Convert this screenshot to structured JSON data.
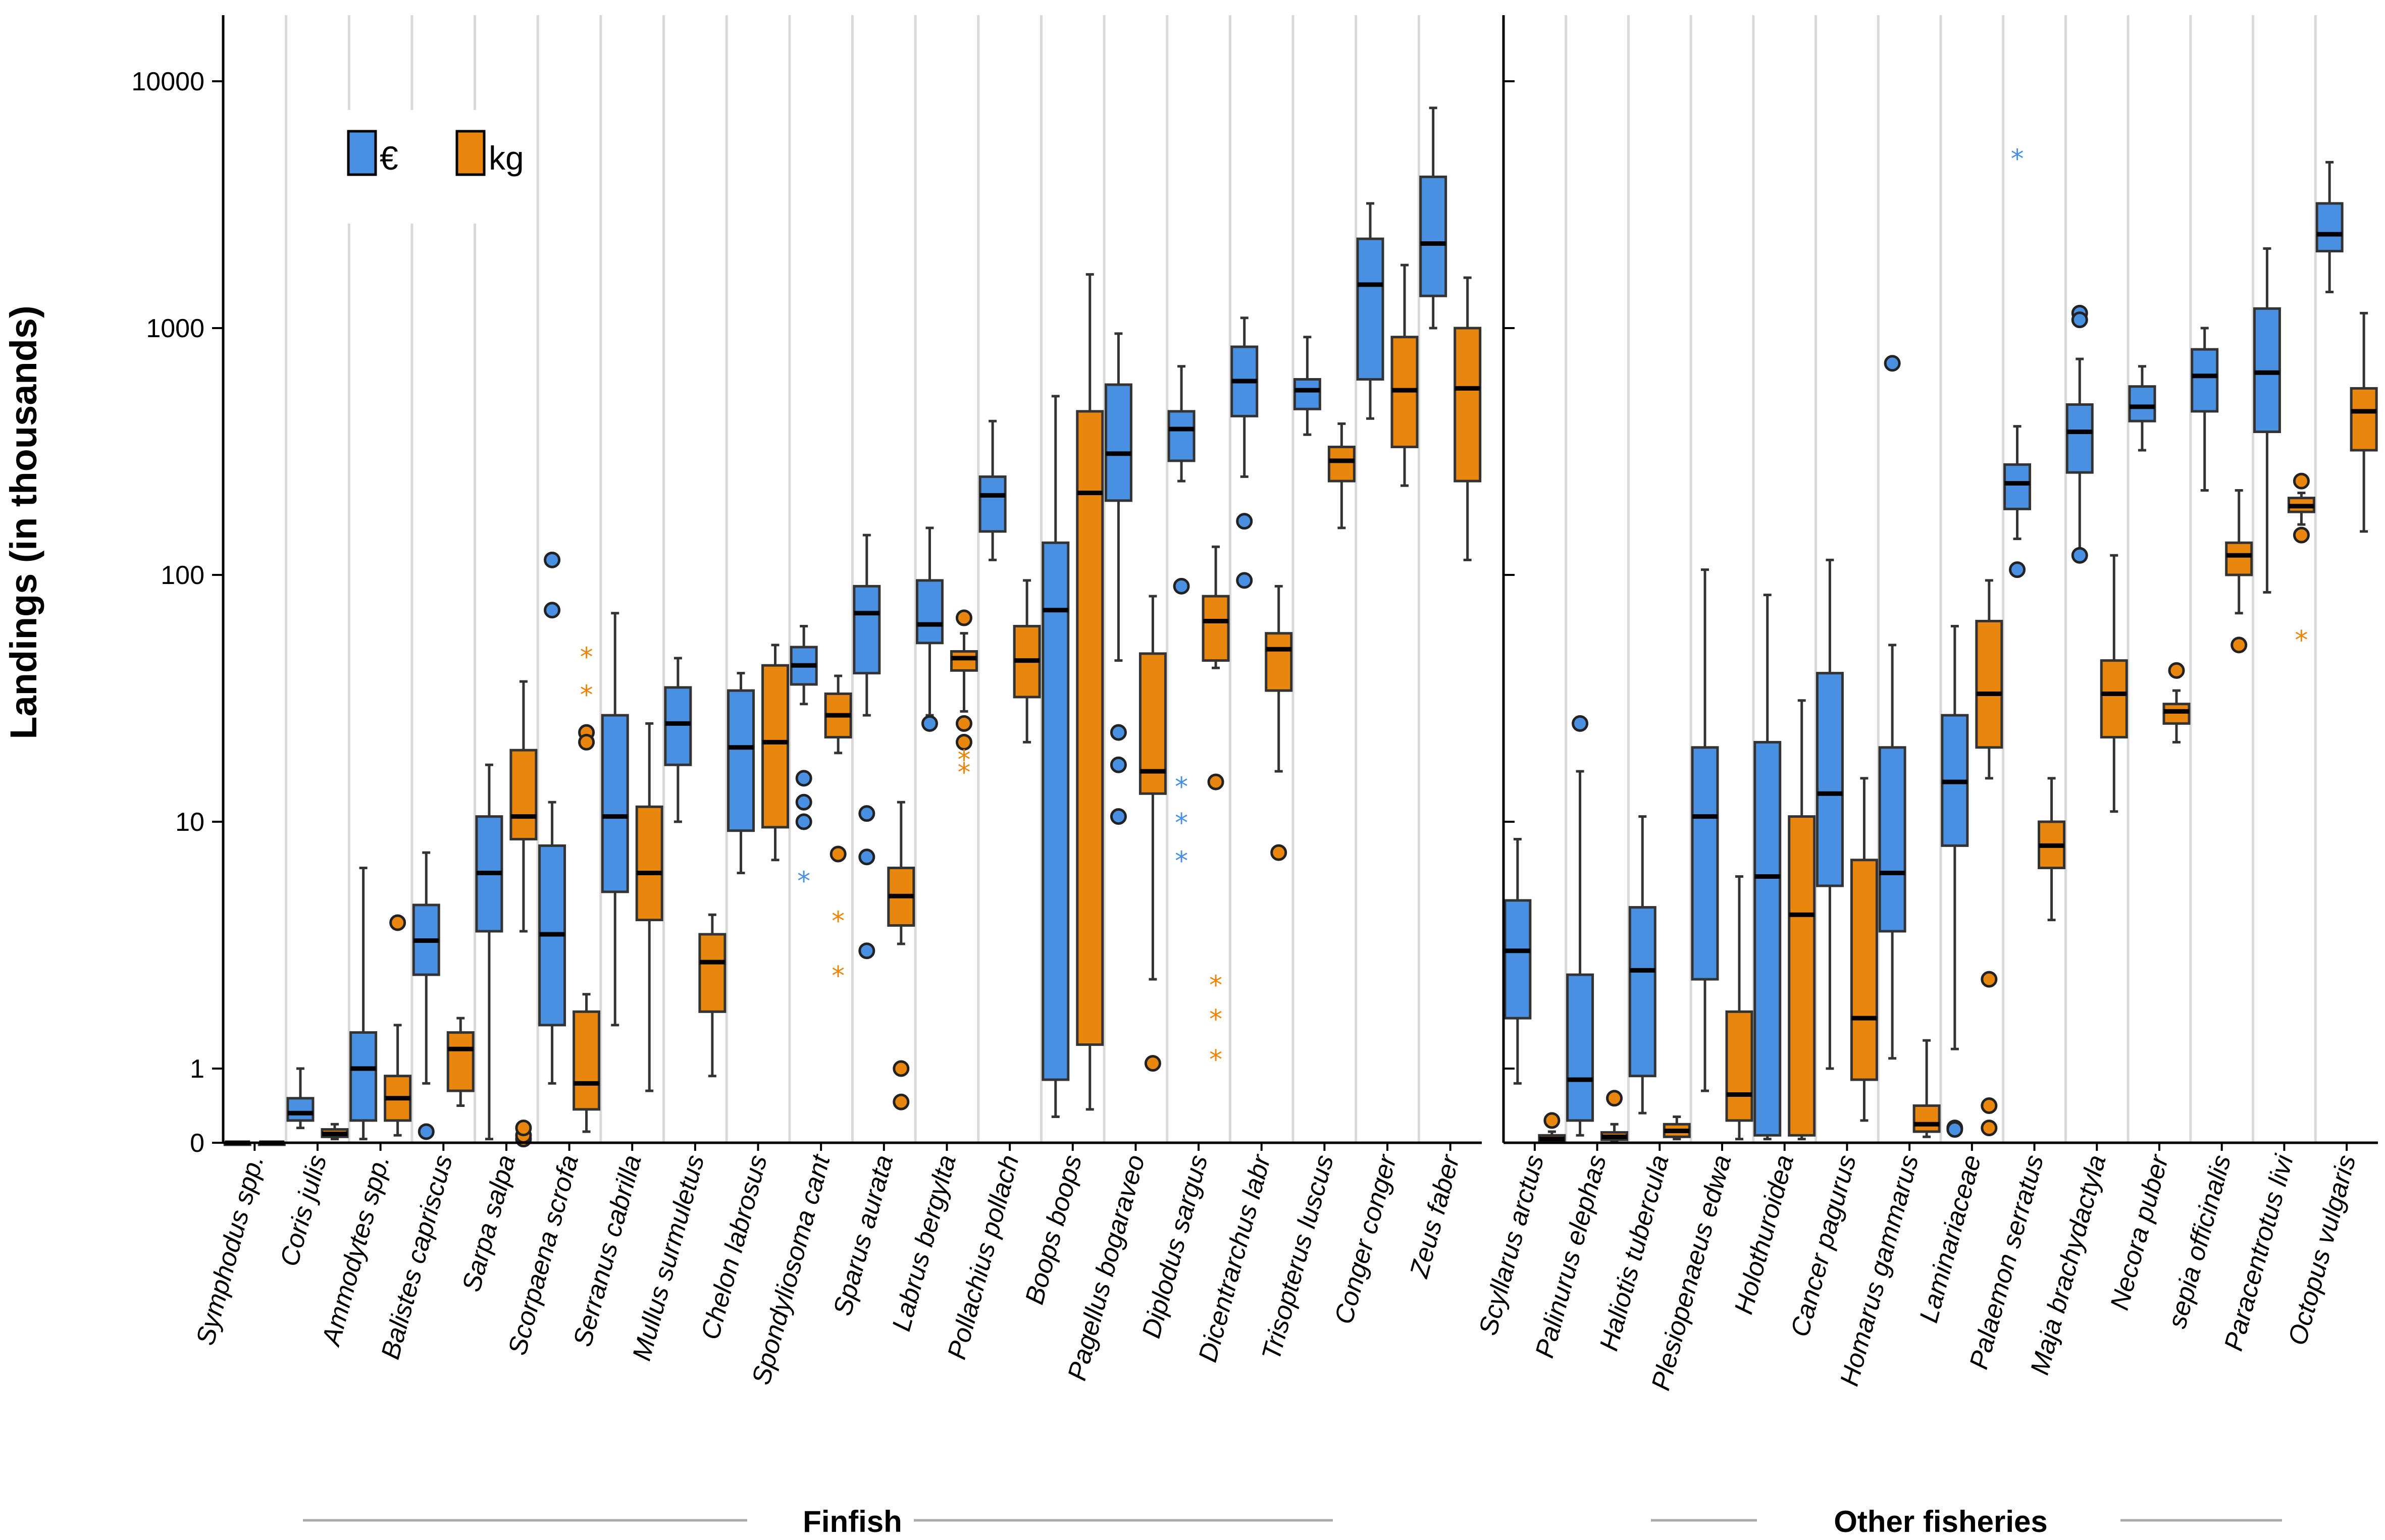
{
  "chart_data": {
    "type": "boxplot",
    "ylabel": "Landings (in thousands)",
    "yscale": "log",
    "yticks": [
      "0",
      "1",
      "10",
      "100",
      "1000",
      "10000"
    ],
    "legend": [
      {
        "name": "€",
        "color": "#4a90e2"
      },
      {
        "name": "kg",
        "color": "#e8860e"
      }
    ],
    "groups": [
      {
        "label": "Finfish",
        "species": [
          {
            "name": "Symphodus spp.",
            "eur": {
              "min": 0,
              "q1": 0,
              "med": 0,
              "q3": 0,
              "max": 0,
              "outliers": [],
              "extremes": []
            },
            "kg": {
              "min": 0,
              "q1": 0,
              "med": 0,
              "q3": 0,
              "max": 0,
              "outliers": [],
              "extremes": []
            }
          },
          {
            "name": "Coris julis",
            "eur": {
              "min": 0.2,
              "q1": 0.3,
              "med": 0.4,
              "q3": 0.6,
              "max": 1.0,
              "outliers": [],
              "extremes": []
            },
            "kg": {
              "min": 0.05,
              "q1": 0.08,
              "med": 0.12,
              "q3": 0.18,
              "max": 0.25,
              "outliers": [],
              "extremes": []
            }
          },
          {
            "name": "Ammodytes spp.",
            "eur": {
              "min": 0.05,
              "q1": 0.3,
              "med": 1.0,
              "q3": 1.4,
              "max": 6.5,
              "outliers": [],
              "extremes": []
            },
            "kg": {
              "min": 0.1,
              "q1": 0.3,
              "med": 0.6,
              "q3": 0.9,
              "max": 1.5,
              "outliers": [
                3.9
              ],
              "extremes": []
            }
          },
          {
            "name": "Balistes capriscus",
            "eur": {
              "min": 0.8,
              "q1": 2.4,
              "med": 3.3,
              "q3": 4.6,
              "max": 7.5,
              "outliers": [
                0.15
              ],
              "extremes": []
            },
            "kg": {
              "min": 0.5,
              "q1": 0.7,
              "med": 1.2,
              "q3": 1.4,
              "max": 1.6,
              "outliers": [],
              "extremes": []
            }
          },
          {
            "name": "Sarpa salpa",
            "eur": {
              "min": 0.05,
              "q1": 3.6,
              "med": 6.2,
              "q3": 10.5,
              "max": 17,
              "outliers": [],
              "extremes": []
            },
            "kg": {
              "min": 3.6,
              "q1": 8.5,
              "med": 10.5,
              "q3": 19.5,
              "max": 37,
              "outliers": [
                0.05,
                0.1,
                0.2
              ],
              "extremes": []
            }
          },
          {
            "name": "Scorpaena scrofa",
            "eur": {
              "min": 0.8,
              "q1": 1.5,
              "med": 3.5,
              "q3": 8.0,
              "max": 12,
              "outliers": [
                115,
                72
              ],
              "extremes": []
            },
            "kg": {
              "min": 0.15,
              "q1": 0.45,
              "med": 0.8,
              "q3": 1.7,
              "max": 2.0,
              "outliers": [
                23,
                21
              ],
              "extremes": [
                47,
                33
              ]
            }
          },
          {
            "name": "Serranus cabrilla",
            "eur": {
              "min": 1.5,
              "q1": 5.2,
              "med": 10.5,
              "q3": 27,
              "max": 70,
              "outliers": [],
              "extremes": []
            },
            "kg": {
              "min": 0.7,
              "q1": 4.0,
              "med": 6.2,
              "q3": 11.5,
              "max": 25,
              "outliers": [],
              "extremes": []
            }
          },
          {
            "name": "Mullus surmuletus",
            "eur": {
              "min": 10,
              "q1": 17,
              "med": 25,
              "q3": 35,
              "max": 46,
              "outliers": [],
              "extremes": []
            },
            "kg": {
              "min": 0.9,
              "q1": 1.7,
              "med": 2.7,
              "q3": 3.5,
              "max": 4.2,
              "outliers": [],
              "extremes": []
            }
          },
          {
            "name": "Chelon labrosus",
            "eur": {
              "min": 6.2,
              "q1": 9.2,
              "med": 20,
              "q3": 34,
              "max": 40,
              "outliers": [],
              "extremes": []
            },
            "kg": {
              "min": 7,
              "q1": 9.5,
              "med": 21,
              "q3": 43,
              "max": 52,
              "outliers": [],
              "extremes": []
            }
          },
          {
            "name": "Spondyliosoma cant",
            "eur": {
              "min": 30,
              "q1": 36,
              "med": 43,
              "q3": 51,
              "max": 62,
              "outliers": [
                15,
                12,
                10
              ],
              "extremes": [
                5.8
              ]
            },
            "kg": {
              "min": 19,
              "q1": 22,
              "med": 27,
              "q3": 33,
              "max": 39,
              "outliers": [
                7.4
              ],
              "extremes": [
                4.0,
                2.4
              ]
            }
          },
          {
            "name": "Sparus aurata",
            "eur": {
              "min": 27,
              "q1": 40,
              "med": 70,
              "q3": 90,
              "max": 145,
              "outliers": [
                10.8,
                7.2,
                3.0
              ],
              "extremes": []
            },
            "kg": {
              "min": 3.2,
              "q1": 3.8,
              "med": 5.0,
              "q3": 6.5,
              "max": 12,
              "outliers": [
                1.0,
                0.55
              ],
              "extremes": []
            }
          },
          {
            "name": "Labrus bergylta",
            "eur": {
              "min": 27,
              "q1": 53,
              "med": 63,
              "q3": 95,
              "max": 155,
              "outliers": [
                25
              ],
              "extremes": []
            },
            "kg": {
              "min": 28,
              "q1": 41,
              "med": 46,
              "q3": 49,
              "max": 58,
              "outliers": [
                67,
                25,
                21
              ],
              "extremes": [
                18,
                16
              ]
            }
          },
          {
            "name": "Pollachius pollach",
            "eur": {
              "min": 115,
              "q1": 150,
              "med": 210,
              "q3": 250,
              "max": 420,
              "outliers": [],
              "extremes": []
            },
            "kg": {
              "min": 21,
              "q1": 32,
              "med": 45,
              "q3": 62,
              "max": 95,
              "outliers": [],
              "extremes": []
            }
          },
          {
            "name": "Boops boops",
            "eur": {
              "min": 0.35,
              "q1": 0.85,
              "med": 72,
              "q3": 135,
              "max": 530,
              "outliers": [],
              "extremes": []
            },
            "kg": {
              "min": 0.45,
              "q1": 1.25,
              "med": 215,
              "q3": 460,
              "max": 1650,
              "outliers": [],
              "extremes": []
            }
          },
          {
            "name": "Pagellus bogaraveo",
            "eur": {
              "min": 45,
              "q1": 200,
              "med": 310,
              "q3": 590,
              "max": 950,
              "outliers": [
                23,
                17,
                10.5
              ],
              "extremes": []
            },
            "kg": {
              "min": 2.3,
              "q1": 13,
              "med": 16,
              "q3": 48,
              "max": 82,
              "outliers": [
                1.05
              ],
              "extremes": []
            }
          },
          {
            "name": "Diplodus sargus",
            "eur": {
              "min": 240,
              "q1": 290,
              "med": 390,
              "q3": 460,
              "max": 700,
              "outliers": [
                90
              ],
              "extremes": [
                14,
                10,
                7
              ]
            },
            "kg": {
              "min": 42,
              "q1": 45,
              "med": 65,
              "q3": 82,
              "max": 130,
              "outliers": [
                14.5
              ],
              "extremes": [
                2.2,
                1.6,
                1.1
              ]
            }
          },
          {
            "name": "Dicentrarchus labr",
            "eur": {
              "min": 250,
              "q1": 440,
              "med": 610,
              "q3": 840,
              "max": 1100,
              "outliers": [
                165,
                95
              ],
              "extremes": []
            },
            "kg": {
              "min": 16,
              "q1": 34,
              "med": 50,
              "q3": 58,
              "max": 90,
              "outliers": [
                7.5
              ],
              "extremes": []
            }
          },
          {
            "name": "Trisopterus luscus",
            "eur": {
              "min": 370,
              "q1": 470,
              "med": 560,
              "q3": 620,
              "max": 920,
              "outliers": [],
              "extremes": []
            },
            "kg": {
              "min": 155,
              "q1": 240,
              "med": 290,
              "q3": 330,
              "max": 410,
              "outliers": [],
              "extremes": []
            }
          },
          {
            "name": "Conger conger",
            "eur": {
              "min": 430,
              "q1": 620,
              "med": 1500,
              "q3": 2300,
              "max": 3200,
              "outliers": [],
              "extremes": []
            },
            "kg": {
              "min": 230,
              "q1": 330,
              "med": 560,
              "q3": 920,
              "max": 1800,
              "outliers": [],
              "extremes": []
            }
          },
          {
            "name": "Zeus faber",
            "eur": {
              "min": 1000,
              "q1": 1350,
              "med": 2200,
              "q3": 4100,
              "max": 7800,
              "outliers": [],
              "extremes": []
            },
            "kg": {
              "min": 115,
              "q1": 240,
              "med": 570,
              "q3": 1000,
              "max": 1600,
              "outliers": [],
              "extremes": []
            }
          }
        ]
      },
      {
        "label": "Other fisheries",
        "species": [
          {
            "name": "Scyllarus arctus",
            "eur": {
              "min": 0.8,
              "q1": 1.6,
              "med": 3.0,
              "q3": 4.8,
              "max": 8.5,
              "outliers": [],
              "extremes": []
            },
            "kg": {
              "min": 0.02,
              "q1": 0.03,
              "med": 0.05,
              "q3": 0.1,
              "max": 0.15,
              "outliers": [
                0.3
              ],
              "extremes": []
            }
          },
          {
            "name": "Palinurus elephas",
            "eur": {
              "min": 0.1,
              "q1": 0.3,
              "med": 0.85,
              "q3": 2.4,
              "max": 16,
              "outliers": [
                25
              ],
              "extremes": []
            },
            "kg": {
              "min": 0.02,
              "q1": 0.04,
              "med": 0.08,
              "q3": 0.14,
              "max": 0.25,
              "outliers": [
                0.6
              ],
              "extremes": []
            }
          },
          {
            "name": "Haliotis tubercula",
            "eur": {
              "min": 0.4,
              "q1": 0.9,
              "med": 2.5,
              "q3": 4.5,
              "max": 10.5,
              "outliers": [],
              "extremes": []
            },
            "kg": {
              "min": 0.05,
              "q1": 0.08,
              "med": 0.16,
              "q3": 0.25,
              "max": 0.35,
              "outliers": [],
              "extremes": []
            }
          },
          {
            "name": "Plesiopenaeus edwa",
            "eur": {
              "min": 0.7,
              "q1": 2.3,
              "med": 10.5,
              "q3": 20,
              "max": 105,
              "outliers": [],
              "extremes": []
            },
            "kg": {
              "min": 0.05,
              "q1": 0.3,
              "med": 0.65,
              "q3": 1.7,
              "max": 6.0,
              "outliers": [],
              "extremes": []
            }
          },
          {
            "name": "Holothuroidea",
            "eur": {
              "min": 0.05,
              "q1": 0.1,
              "med": 6.0,
              "q3": 21,
              "max": 83,
              "outliers": [],
              "extremes": []
            },
            "kg": {
              "min": 0.05,
              "q1": 0.1,
              "med": 4.2,
              "q3": 10.5,
              "max": 31,
              "outliers": [],
              "extremes": []
            }
          },
          {
            "name": "Cancer pagurus",
            "eur": {
              "min": 1.0,
              "q1": 5.5,
              "med": 13,
              "q3": 40,
              "max": 115,
              "outliers": [],
              "extremes": []
            },
            "kg": {
              "min": 0.3,
              "q1": 0.85,
              "med": 1.6,
              "q3": 7.0,
              "max": 15,
              "outliers": [],
              "extremes": []
            }
          },
          {
            "name": "Homarus gammarus",
            "eur": {
              "min": 1.1,
              "q1": 3.6,
              "med": 6.2,
              "q3": 20,
              "max": 52,
              "outliers": [
                720
              ],
              "extremes": []
            },
            "kg": {
              "min": 0.08,
              "q1": 0.15,
              "med": 0.25,
              "q3": 0.5,
              "max": 1.3,
              "outliers": [],
              "extremes": []
            }
          },
          {
            "name": "Laminariaceae",
            "eur": {
              "min": 1.2,
              "q1": 8,
              "med": 14.5,
              "q3": 27,
              "max": 62,
              "outliers": [
                0.2,
                0.18
              ],
              "extremes": []
            },
            "kg": {
              "min": 15,
              "q1": 20,
              "med": 33,
              "q3": 65,
              "max": 95,
              "outliers": [
                2.3,
                0.5,
                0.2
              ],
              "extremes": []
            }
          },
          {
            "name": "Palaemon serratus",
            "eur": {
              "min": 140,
              "q1": 185,
              "med": 235,
              "q3": 280,
              "max": 400,
              "outliers": [
                105
              ],
              "extremes": [
                4900
              ]
            },
            "kg": {
              "min": 4.0,
              "q1": 6.5,
              "med": 8.0,
              "q3": 10,
              "max": 15,
              "outliers": [],
              "extremes": []
            }
          },
          {
            "name": "Maja brachydactyla",
            "eur": {
              "min": 125,
              "q1": 260,
              "med": 380,
              "q3": 490,
              "max": 750,
              "outliers": [
                1150,
                1080,
                120
              ],
              "extremes": []
            },
            "kg": {
              "min": 11,
              "q1": 22,
              "med": 33,
              "q3": 45,
              "max": 120,
              "outliers": [],
              "extremes": []
            }
          },
          {
            "name": "Necora puber",
            "eur": {
              "min": 320,
              "q1": 420,
              "med": 480,
              "q3": 580,
              "max": 700,
              "outliers": [],
              "extremes": []
            },
            "kg": {
              "min": 21,
              "q1": 25,
              "med": 28,
              "q3": 30,
              "max": 34,
              "outliers": [
                41
              ],
              "extremes": []
            }
          },
          {
            "name": "sepia officinalis",
            "eur": {
              "min": 220,
              "q1": 460,
              "med": 640,
              "q3": 820,
              "max": 1000,
              "outliers": [],
              "extremes": []
            },
            "kg": {
              "min": 70,
              "q1": 100,
              "med": 120,
              "q3": 135,
              "max": 220,
              "outliers": [
                52
              ],
              "extremes": []
            }
          },
          {
            "name": "Paracentrotus livi",
            "eur": {
              "min": 85,
              "q1": 380,
              "med": 660,
              "q3": 1200,
              "max": 2100,
              "outliers": [],
              "extremes": []
            },
            "kg": {
              "min": 160,
              "q1": 180,
              "med": 190,
              "q3": 205,
              "max": 215,
              "outliers": [
                240,
                145
              ],
              "extremes": [
                55
              ]
            }
          },
          {
            "name": "Octopus vulgaris",
            "eur": {
              "min": 1400,
              "q1": 2050,
              "med": 2400,
              "q3": 3200,
              "max": 4700,
              "outliers": [],
              "extremes": []
            },
            "kg": {
              "min": 150,
              "q1": 320,
              "med": 460,
              "q3": 570,
              "max": 1150,
              "outliers": [],
              "extremes": []
            }
          }
        ]
      }
    ]
  }
}
